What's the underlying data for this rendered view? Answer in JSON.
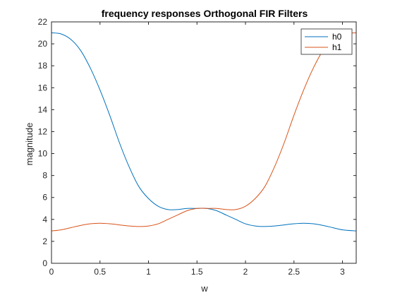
{
  "chart_data": {
    "type": "line",
    "title": "frequency responses Orthogonal FIR Filters",
    "xlabel": "w",
    "ylabel": "magnitude",
    "xlim": [
      0,
      3.1416
    ],
    "ylim": [
      0,
      22
    ],
    "xticks": [
      0,
      0.5,
      1,
      1.5,
      2,
      2.5,
      3
    ],
    "xtick_labels": [
      "0",
      "0.5",
      "1",
      "1.5",
      "2",
      "2.5",
      "3"
    ],
    "yticks": [
      0,
      2,
      4,
      6,
      8,
      10,
      12,
      14,
      16,
      18,
      20,
      22
    ],
    "ytick_labels": [
      "0",
      "2",
      "4",
      "6",
      "8",
      "10",
      "12",
      "14",
      "16",
      "18",
      "20",
      "22"
    ],
    "grid": false,
    "legend_position": "top-right",
    "series": [
      {
        "name": "h0",
        "color": "#0072BD",
        "x": [
          0,
          0.1,
          0.2,
          0.3,
          0.4,
          0.5,
          0.6,
          0.7,
          0.8,
          0.9,
          1.0,
          1.1,
          1.2,
          1.3,
          1.4,
          1.5,
          1.6,
          1.7,
          1.8,
          1.9,
          2.0,
          2.1,
          2.2,
          2.3,
          2.4,
          2.5,
          2.6,
          2.7,
          2.8,
          2.9,
          3.0,
          3.1416
        ],
        "values": [
          21.0,
          20.9,
          20.4,
          19.4,
          17.8,
          15.8,
          13.5,
          11.0,
          8.8,
          7.0,
          5.9,
          5.2,
          4.9,
          4.9,
          5.0,
          5.0,
          5.0,
          4.8,
          4.4,
          4.0,
          3.6,
          3.4,
          3.35,
          3.4,
          3.5,
          3.6,
          3.65,
          3.6,
          3.45,
          3.25,
          3.05,
          2.95
        ]
      },
      {
        "name": "h1",
        "color": "#D95319",
        "x": [
          0,
          0.1,
          0.2,
          0.3,
          0.4,
          0.5,
          0.6,
          0.7,
          0.8,
          0.9,
          1.0,
          1.1,
          1.2,
          1.3,
          1.4,
          1.5,
          1.6,
          1.7,
          1.8,
          1.9,
          2.0,
          2.1,
          2.2,
          2.3,
          2.4,
          2.5,
          2.6,
          2.7,
          2.8,
          2.9,
          3.0,
          3.1416
        ],
        "values": [
          2.95,
          3.05,
          3.25,
          3.45,
          3.6,
          3.65,
          3.6,
          3.5,
          3.4,
          3.35,
          3.4,
          3.6,
          4.0,
          4.4,
          4.8,
          5.0,
          5.0,
          5.0,
          4.9,
          4.9,
          5.2,
          5.9,
          7.0,
          8.8,
          11.0,
          13.5,
          15.8,
          17.8,
          19.4,
          20.4,
          20.9,
          21.0
        ]
      }
    ]
  }
}
